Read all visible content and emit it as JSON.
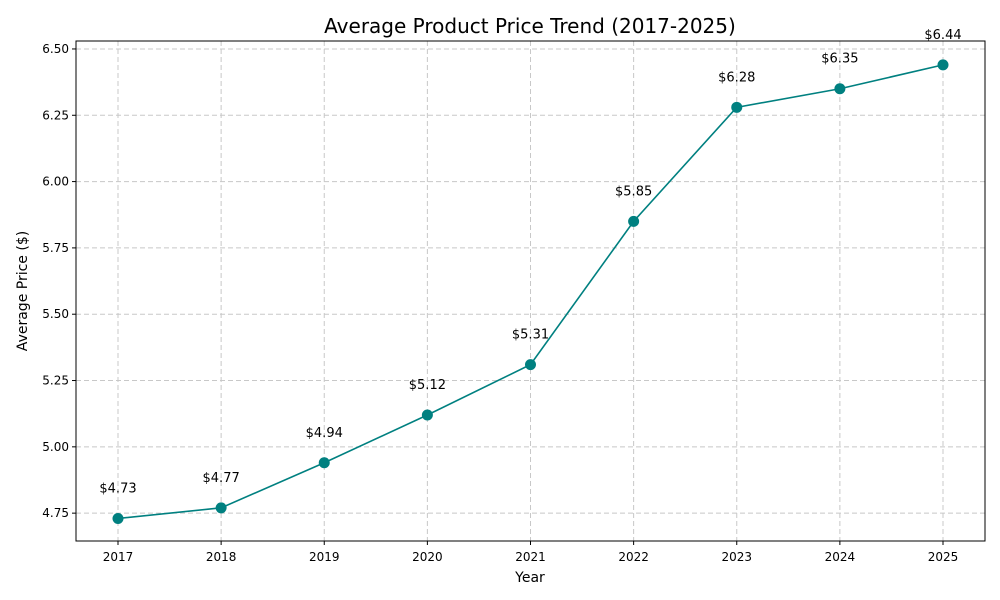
{
  "chart_data": {
    "type": "line",
    "title": "Average Product Price Trend (2017-2025)",
    "xlabel": "Year",
    "ylabel": "Average Price ($)",
    "x": [
      "2017",
      "2018",
      "2019",
      "2020",
      "2021",
      "2022",
      "2023",
      "2024",
      "2025"
    ],
    "series": [
      {
        "values": [
          4.73,
          4.77,
          4.94,
          5.12,
          5.31,
          5.85,
          6.28,
          6.35,
          6.44
        ],
        "labels": [
          "$4.73",
          "$4.77",
          "$4.94",
          "$5.12",
          "$5.31",
          "$5.85",
          "$6.28",
          "$6.35",
          "$6.44"
        ],
        "color": "#008080"
      }
    ],
    "yticks": [
      "4.75",
      "5.00",
      "5.25",
      "5.50",
      "5.75",
      "6.00",
      "6.25",
      "6.50"
    ],
    "ylim": [
      4.645,
      6.53
    ],
    "grid": true
  }
}
